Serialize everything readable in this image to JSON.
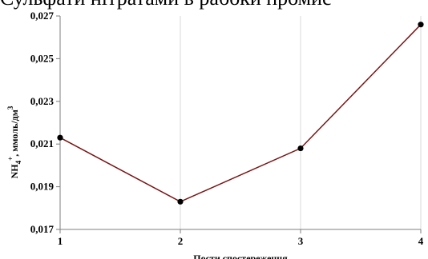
{
  "header_text": "Сульфати нітратами в рабоки промис",
  "chart_data": {
    "type": "line",
    "x": [
      1,
      2,
      3,
      4
    ],
    "series": [
      {
        "values": [
          0.0213,
          0.0183,
          0.0208,
          0.0266
        ],
        "color": "#7a1414"
      }
    ],
    "xlabel": "Пости спостереження",
    "ylabel": "NH4+, ммоль/дм3",
    "ylabel_parts": {
      "base": "NH",
      "sub": "4",
      "sup_charge": "+",
      "rest": ", ммоль/дм",
      "sup_unit": "3"
    },
    "xlim": [
      1,
      4
    ],
    "ylim": [
      0.017,
      0.027
    ],
    "x_ticks": [
      1,
      2,
      3,
      4
    ],
    "x_tick_labels": [
      "1",
      "2",
      "3",
      "4"
    ],
    "y_ticks": [
      0.017,
      0.019,
      0.021,
      0.023,
      0.025,
      0.027
    ],
    "y_tick_labels": [
      "0,017",
      "0,019",
      "0,021",
      "0,023",
      "0,025",
      "0,027"
    ],
    "grid": "vertical",
    "marker_color": "#000000",
    "grid_color": "#d9d9d9"
  }
}
